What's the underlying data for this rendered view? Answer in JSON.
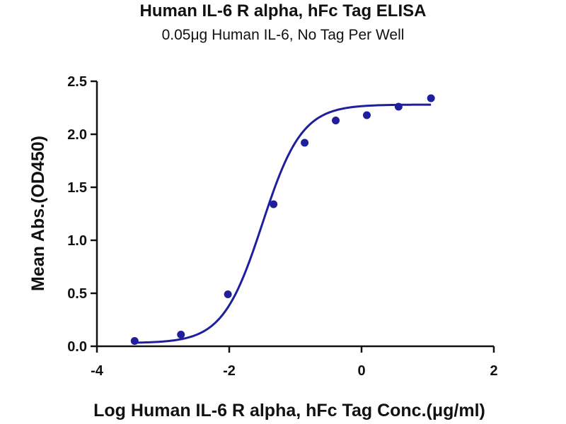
{
  "chart_data": {
    "type": "scatter",
    "title": "Human IL-6 R alpha, hFc Tag ELISA",
    "subtitle": "0.05μg Human IL-6, No Tag Per Well",
    "xlabel": "Log Human IL-6 R alpha, hFc Tag Conc.(μg/ml)",
    "ylabel": "Mean Abs.(OD450)",
    "xlim": [
      -4,
      2
    ],
    "ylim": [
      0,
      2.5
    ],
    "x_ticks": [
      "-4",
      "-2",
      "0",
      "2"
    ],
    "y_ticks": [
      "0.0",
      "0.5",
      "1.0",
      "1.5",
      "2.0",
      "2.5"
    ],
    "grid": false,
    "color": "#1f1f9e",
    "series": [
      {
        "x": [
          -3.43,
          -2.73,
          -2.02,
          -1.33,
          -0.86,
          -0.39,
          0.08,
          0.56,
          1.05
        ],
        "y": [
          0.05,
          0.11,
          0.49,
          1.34,
          1.92,
          2.13,
          2.18,
          2.26,
          2.34
        ]
      }
    ],
    "fit": {
      "type": "4PL sigmoid",
      "bottom": 0.03,
      "top": 2.28,
      "log_ec50": -1.5,
      "hill_slope": 1.45,
      "x_range": [
        -3.43,
        1.05
      ]
    }
  }
}
